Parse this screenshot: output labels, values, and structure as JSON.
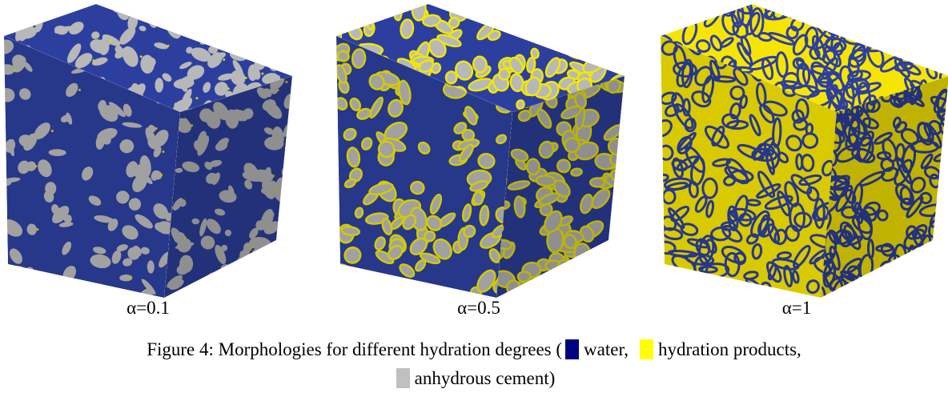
{
  "figure": {
    "panels": [
      {
        "label": "α=0.1"
      },
      {
        "label": "α=0.5"
      },
      {
        "label": "α=1"
      }
    ],
    "caption": {
      "text": "Figure 4: Morphologies for different hydration degrees (",
      "legend": [
        {
          "label": "water,",
          "color": "#000080"
        },
        {
          "label": "hydration products,",
          "color": "#ffff00"
        },
        {
          "label": "anhydrous cement)",
          "color": "#c0c0c0"
        }
      ]
    }
  }
}
